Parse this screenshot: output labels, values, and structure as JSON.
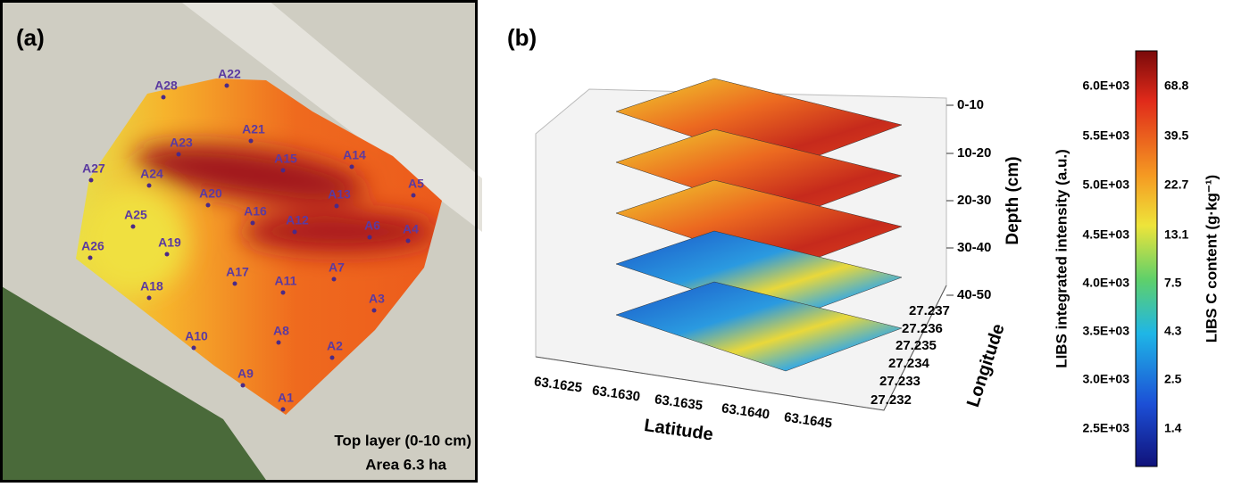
{
  "panel_a": {
    "label": "(a)",
    "points": [
      "A1",
      "A2",
      "A3",
      "A4",
      "A5",
      "A6",
      "A7",
      "A8",
      "A9",
      "A10",
      "A11",
      "A12",
      "A13",
      "A14",
      "A15",
      "A16",
      "A17",
      "A18",
      "A19",
      "A20",
      "A21",
      "A22",
      "A23",
      "A24",
      "A25",
      "A26",
      "A27",
      "A28"
    ],
    "caption": [
      "Top layer (0-10 cm)",
      "Area 6.3 ha"
    ]
  },
  "panel_b": {
    "label": "(b)",
    "depth_axis": {
      "title": "Depth (cm)",
      "ticks": [
        "0-10",
        "10-20",
        "20-30",
        "30-40",
        "40-50"
      ]
    },
    "latitude_axis": {
      "title": "Latitude",
      "ticks": [
        "63.1625",
        "63.1630",
        "63.1635",
        "63.1640",
        "63.1645"
      ]
    },
    "longitude_axis": {
      "title": "Longitude",
      "ticks": [
        "27.232",
        "27.233",
        "27.234",
        "27.235",
        "27.236",
        "27.237"
      ]
    }
  },
  "colorbar": {
    "left_title": "LIBS integrated intensity (a.u.)",
    "left_ticks": [
      "6.0E+03",
      "5.5E+03",
      "5.0E+03",
      "4.5E+03",
      "4.0E+03",
      "3.5E+03",
      "3.0E+03",
      "2.5E+03"
    ],
    "right_title": "LIBS C content (g·kg⁻¹)",
    "right_ticks": [
      "68.8",
      "39.5",
      "22.7",
      "13.1",
      "7.5",
      "4.3",
      "2.5",
      "1.4"
    ]
  }
}
